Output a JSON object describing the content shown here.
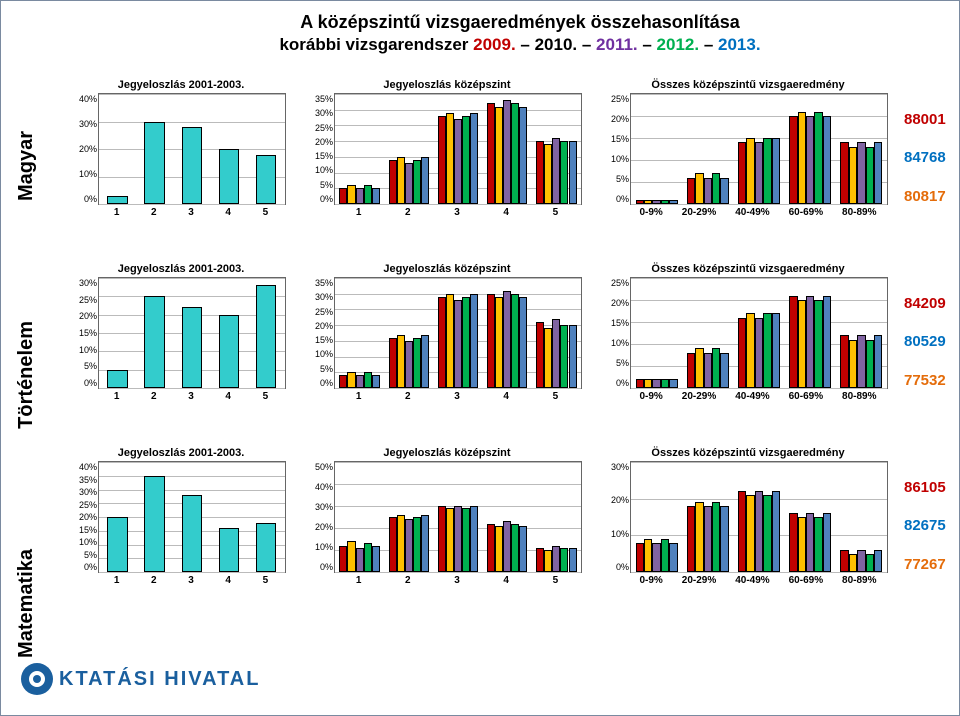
{
  "title_line1": "A középszintű vizsgaeredmények összehasonlítása",
  "title_line2_part1": "korábbi vizsgarendszer ",
  "title_years": [
    {
      "text": "2009.",
      "color": "#c00000"
    },
    {
      "text": "2010.",
      "color": "#000000"
    },
    {
      "text": "2011.",
      "color": "#7030a0"
    },
    {
      "text": "2012.",
      "color": "#00b050"
    },
    {
      "text": "2013.",
      "color": "#0070c0"
    }
  ],
  "side_labels": [
    "Magyar",
    "Történelem",
    "Matematika"
  ],
  "series_colors": [
    "#c00000",
    "#ffc000",
    "#8064a2",
    "#00b050",
    "#4f81bd"
  ],
  "cyan": "#33cccc",
  "col1_title": "Jegyeloszlás 2001-2003.",
  "col2_title": "Jegyeloszlás középszint",
  "col3_title": "Összes középszintű vizsgaeredmény",
  "x_grades": [
    "1",
    "2",
    "3",
    "4",
    "5"
  ],
  "x_ranges": [
    "0-9%",
    "20-29%",
    "40-49%",
    "60-69%",
    "80-89%"
  ],
  "rows": [
    {
      "col1": {
        "ymax": 40,
        "ystep": 10,
        "values": [
          3,
          30,
          28,
          20,
          18
        ]
      },
      "col2": {
        "ymax": 35,
        "ystep": 5,
        "series": [
          [
            5,
            14,
            28,
            32,
            20
          ],
          [
            6,
            15,
            29,
            31,
            19
          ],
          [
            5,
            13,
            27,
            33,
            21
          ],
          [
            6,
            14,
            28,
            32,
            20
          ],
          [
            5,
            15,
            29,
            31,
            20
          ]
        ]
      },
      "col3": {
        "ymax": 25,
        "ystep": 5,
        "series": [
          [
            1,
            6,
            14,
            20,
            14
          ],
          [
            1,
            7,
            15,
            21,
            13
          ],
          [
            1,
            6,
            14,
            20,
            14
          ],
          [
            1,
            7,
            15,
            21,
            13
          ],
          [
            1,
            6,
            15,
            20,
            14
          ]
        ]
      },
      "nums": [
        {
          "v": "88001",
          "c": "#c00000"
        },
        {
          "v": "84768",
          "c": "#0070c0"
        },
        {
          "v": "80817",
          "c": "#e46c0a"
        }
      ]
    },
    {
      "col1": {
        "ymax": 30,
        "ystep": 5,
        "values": [
          5,
          25,
          22,
          20,
          28
        ]
      },
      "col2": {
        "ymax": 35,
        "ystep": 5,
        "series": [
          [
            4,
            16,
            29,
            30,
            21
          ],
          [
            5,
            17,
            30,
            29,
            19
          ],
          [
            4,
            15,
            28,
            31,
            22
          ],
          [
            5,
            16,
            29,
            30,
            20
          ],
          [
            4,
            17,
            30,
            29,
            20
          ]
        ]
      },
      "col3": {
        "ymax": 25,
        "ystep": 5,
        "series": [
          [
            2,
            8,
            16,
            21,
            12
          ],
          [
            2,
            9,
            17,
            20,
            11
          ],
          [
            2,
            8,
            16,
            21,
            12
          ],
          [
            2,
            9,
            17,
            20,
            11
          ],
          [
            2,
            8,
            17,
            21,
            12
          ]
        ]
      },
      "nums": [
        {
          "v": "84209",
          "c": "#c00000"
        },
        {
          "v": "80529",
          "c": "#0070c0"
        },
        {
          "v": "77532",
          "c": "#e46c0a"
        }
      ]
    },
    {
      "col1": {
        "ymax": 40,
        "ystep": 5,
        "values": [
          20,
          35,
          28,
          16,
          18
        ]
      },
      "col2": {
        "ymax": 50,
        "ystep": 10,
        "series": [
          [
            12,
            25,
            30,
            22,
            11
          ],
          [
            14,
            26,
            29,
            21,
            10
          ],
          [
            11,
            24,
            30,
            23,
            12
          ],
          [
            13,
            25,
            29,
            22,
            11
          ],
          [
            12,
            26,
            30,
            21,
            11
          ]
        ]
      },
      "col3": {
        "ymax": 30,
        "ystep": 10,
        "series": [
          [
            8,
            18,
            22,
            16,
            6
          ],
          [
            9,
            19,
            21,
            15,
            5
          ],
          [
            8,
            18,
            22,
            16,
            6
          ],
          [
            9,
            19,
            21,
            15,
            5
          ],
          [
            8,
            18,
            22,
            16,
            6
          ]
        ]
      },
      "nums": [
        {
          "v": "86105",
          "c": "#c00000"
        },
        {
          "v": "82675",
          "c": "#0070c0"
        },
        {
          "v": "77267",
          "c": "#e46c0a"
        }
      ]
    }
  ],
  "logo_text": "KTATÁSI HIVATAL"
}
